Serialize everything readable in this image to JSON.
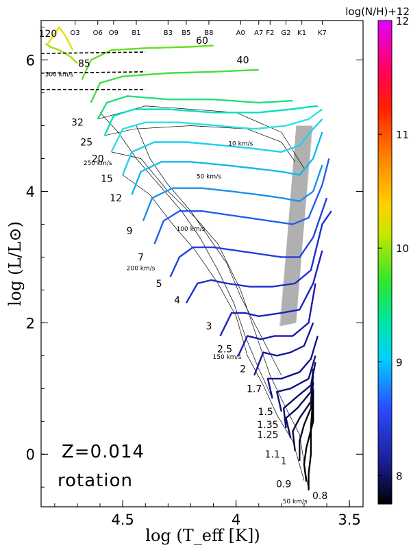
{
  "chart_data": {
    "type": "line",
    "title": "",
    "xlabel": "log (T_eff [K])",
    "ylabel": "log (L/L⊙)",
    "xlim": [
      4.86,
      3.44
    ],
    "ylim": [
      -0.8,
      6.6
    ],
    "x_ticks": [
      4.5,
      4.0,
      3.5
    ],
    "x_tick_labels": [
      "4.5",
      "4",
      "3.5"
    ],
    "y_ticks": [
      0,
      2,
      4,
      6
    ],
    "y_tick_labels": [
      "0",
      "2",
      "4",
      "6"
    ],
    "spectral_types": [
      {
        "label": "O3",
        "x": 4.71
      },
      {
        "label": "O6",
        "x": 4.61
      },
      {
        "label": "O9",
        "x": 4.54
      },
      {
        "label": "B1",
        "x": 4.44
      },
      {
        "label": "B3",
        "x": 4.3
      },
      {
        "label": "B5",
        "x": 4.22
      },
      {
        "label": "B8",
        "x": 4.12
      },
      {
        "label": "A0",
        "x": 3.98
      },
      {
        "label": "A7",
        "x": 3.9
      },
      {
        "label": "F2",
        "x": 3.85
      },
      {
        "label": "G2",
        "x": 3.78
      },
      {
        "label": "K1",
        "x": 3.71
      },
      {
        "label": "K7",
        "x": 3.62
      }
    ],
    "annotations": [
      "Z=0.014",
      "rotation"
    ],
    "colorbar": {
      "label": "log(N/H)+12",
      "range": [
        7.75,
        12.0
      ],
      "ticks": [
        "8",
        "9",
        "10",
        "11",
        "12"
      ]
    },
    "tracks": [
      {
        "mass": "0.8",
        "label_at": [
          3.63,
          -0.63
        ],
        "zams": [
          3.68,
          -0.55
        ],
        "points": [
          [
            3.68,
            -0.55
          ],
          [
            3.68,
            -0.3
          ],
          [
            3.67,
            0.0
          ],
          [
            3.67,
            0.4
          ],
          [
            3.66,
            0.9
          ]
        ]
      },
      {
        "mass": "0.9",
        "label_at": [
          3.79,
          -0.45
        ],
        "zams": [
          3.69,
          -0.42
        ],
        "points": [
          [
            3.69,
            -0.42
          ],
          [
            3.7,
            -0.15
          ],
          [
            3.69,
            0.1
          ],
          [
            3.66,
            0.5
          ],
          [
            3.66,
            1.0
          ]
        ]
      },
      {
        "mass": "1",
        "label_at": [
          3.79,
          -0.1
        ],
        "zams": [
          3.72,
          -0.1
        ],
        "points": [
          [
            3.72,
            -0.1
          ],
          [
            3.72,
            0.2
          ],
          [
            3.7,
            0.45
          ],
          [
            3.67,
            0.7
          ],
          [
            3.66,
            1.1
          ]
        ]
      },
      {
        "mass": "1.1",
        "label_at": [
          3.84,
          0.0
        ],
        "zams": [
          3.74,
          0.05
        ],
        "points": [
          [
            3.74,
            0.05
          ],
          [
            3.75,
            0.35
          ],
          [
            3.72,
            0.55
          ],
          [
            3.67,
            0.8
          ],
          [
            3.66,
            1.2
          ]
        ]
      },
      {
        "mass": "1.25",
        "label_at": [
          3.86,
          0.3
        ],
        "zams": [
          3.76,
          0.25
        ],
        "points": [
          [
            3.76,
            0.25
          ],
          [
            3.78,
            0.55
          ],
          [
            3.73,
            0.7
          ],
          [
            3.67,
            0.95
          ],
          [
            3.66,
            1.3
          ]
        ]
      },
      {
        "mass": "1.35",
        "label_at": [
          3.86,
          0.45
        ],
        "zams": [
          3.78,
          0.4
        ],
        "points": [
          [
            3.78,
            0.4
          ],
          [
            3.79,
            0.7
          ],
          [
            3.74,
            0.85
          ],
          [
            3.67,
            1.05
          ],
          [
            3.65,
            1.4
          ]
        ]
      },
      {
        "mass": "1.5",
        "label_at": [
          3.87,
          0.65
        ],
        "zams": [
          3.8,
          0.65
        ],
        "points": [
          [
            3.8,
            0.65
          ],
          [
            3.82,
            0.95
          ],
          [
            3.76,
            1.0
          ],
          [
            3.68,
            1.15
          ],
          [
            3.65,
            1.5
          ]
        ]
      },
      {
        "mass": "1.7",
        "label_at": [
          3.92,
          1.0
        ],
        "zams": [
          3.84,
          0.85
        ],
        "points": [
          [
            3.84,
            0.85
          ],
          [
            3.86,
            1.15
          ],
          [
            3.8,
            1.15
          ],
          [
            3.72,
            1.25
          ],
          [
            3.67,
            1.45
          ],
          [
            3.64,
            1.8
          ]
        ]
      },
      {
        "mass": "2",
        "label_at": [
          3.97,
          1.3
        ],
        "zams": [
          3.92,
          1.2
        ],
        "points": [
          [
            3.92,
            1.2
          ],
          [
            3.88,
            1.55
          ],
          [
            3.82,
            1.5
          ],
          [
            3.76,
            1.55
          ],
          [
            3.7,
            1.65
          ],
          [
            3.66,
            2.0
          ]
        ]
      },
      {
        "mass": "2.5",
        "label_at": [
          4.05,
          1.6
        ],
        "zams": [
          3.99,
          1.5
        ],
        "points": [
          [
            3.99,
            1.5
          ],
          [
            3.95,
            1.8
          ],
          [
            3.89,
            1.75
          ],
          [
            3.83,
            1.8
          ],
          [
            3.75,
            1.8
          ],
          [
            3.68,
            2.0
          ],
          [
            3.65,
            2.6
          ]
        ]
      },
      {
        "mass": "3",
        "label_at": [
          4.12,
          1.95
        ],
        "zams": [
          4.07,
          1.8
        ],
        "points": [
          [
            4.07,
            1.8
          ],
          [
            4.02,
            2.15
          ],
          [
            3.96,
            2.15
          ],
          [
            3.9,
            2.1
          ],
          [
            3.8,
            2.15
          ],
          [
            3.72,
            2.2
          ],
          [
            3.66,
            2.6
          ],
          [
            3.62,
            3.1
          ]
        ]
      },
      {
        "mass": "4",
        "label_at": [
          4.26,
          2.35
        ],
        "zams": [
          4.22,
          2.3
        ],
        "points": [
          [
            4.22,
            2.3
          ],
          [
            4.17,
            2.6
          ],
          [
            4.11,
            2.65
          ],
          [
            4.04,
            2.6
          ],
          [
            3.94,
            2.55
          ],
          [
            3.84,
            2.55
          ],
          [
            3.74,
            2.6
          ],
          [
            3.67,
            2.8
          ],
          [
            3.62,
            3.5
          ],
          [
            3.58,
            3.7
          ]
        ]
      },
      {
        "mass": "5",
        "label_at": [
          4.34,
          2.6
        ],
        "zams": [
          4.29,
          2.7
        ],
        "points": [
          [
            4.29,
            2.7
          ],
          [
            4.25,
            3.0
          ],
          [
            4.19,
            3.15
          ],
          [
            4.1,
            3.15
          ],
          [
            4.0,
            3.1
          ],
          [
            3.9,
            3.05
          ],
          [
            3.8,
            3.0
          ],
          [
            3.72,
            3.0
          ],
          [
            3.66,
            3.3
          ],
          [
            3.6,
            3.9
          ]
        ]
      },
      {
        "mass": "7",
        "label_at": [
          4.42,
          3.0
        ],
        "zams": [
          4.36,
          3.2
        ],
        "points": [
          [
            4.36,
            3.2
          ],
          [
            4.32,
            3.55
          ],
          [
            4.25,
            3.7
          ],
          [
            4.15,
            3.7
          ],
          [
            4.05,
            3.65
          ],
          [
            3.95,
            3.6
          ],
          [
            3.85,
            3.55
          ],
          [
            3.75,
            3.5
          ],
          [
            3.68,
            3.6
          ],
          [
            3.62,
            4.1
          ],
          [
            3.59,
            4.5
          ]
        ]
      },
      {
        "mass": "9",
        "label_at": [
          4.47,
          3.4
        ],
        "zams": [
          4.41,
          3.55
        ],
        "points": [
          [
            4.41,
            3.55
          ],
          [
            4.37,
            3.9
          ],
          [
            4.28,
            4.05
          ],
          [
            4.15,
            4.05
          ],
          [
            4.02,
            4.0
          ],
          [
            3.9,
            3.95
          ],
          [
            3.8,
            3.9
          ],
          [
            3.72,
            3.85
          ],
          [
            3.66,
            4.0
          ],
          [
            3.62,
            4.4
          ]
        ]
      },
      {
        "mass": "12",
        "label_at": [
          4.53,
          3.9
        ],
        "zams": [
          4.46,
          3.95
        ],
        "points": [
          [
            4.46,
            3.95
          ],
          [
            4.42,
            4.3
          ],
          [
            4.33,
            4.45
          ],
          [
            4.2,
            4.45
          ],
          [
            4.05,
            4.4
          ],
          [
            3.92,
            4.35
          ],
          [
            3.8,
            4.3
          ],
          [
            3.72,
            4.25
          ],
          [
            3.66,
            4.5
          ],
          [
            3.62,
            4.9
          ]
        ]
      },
      {
        "mass": "15",
        "label_at": [
          4.57,
          4.2
        ],
        "zams": [
          4.5,
          4.25
        ],
        "points": [
          [
            4.5,
            4.25
          ],
          [
            4.46,
            4.6
          ],
          [
            4.36,
            4.75
          ],
          [
            4.22,
            4.75
          ],
          [
            4.06,
            4.7
          ],
          [
            3.92,
            4.65
          ],
          [
            3.8,
            4.6
          ],
          [
            3.72,
            4.7
          ],
          [
            3.66,
            4.95
          ],
          [
            3.62,
            5.1
          ]
        ]
      },
      {
        "mass": "20",
        "label_at": [
          4.61,
          4.5
        ],
        "zams": [
          4.55,
          4.6
        ],
        "points": [
          [
            4.55,
            4.6
          ],
          [
            4.5,
            4.95
          ],
          [
            4.4,
            5.05
          ],
          [
            4.25,
            5.05
          ],
          [
            4.08,
            5.0
          ],
          [
            3.92,
            4.95
          ],
          [
            3.78,
            5.0
          ],
          [
            3.68,
            5.1
          ],
          [
            3.62,
            5.25
          ]
        ]
      },
      {
        "mass": "25",
        "label_at": [
          4.66,
          4.75
        ],
        "zams": [
          4.58,
          4.85
        ],
        "points": [
          [
            4.58,
            4.85
          ],
          [
            4.54,
            5.15
          ],
          [
            4.45,
            5.25
          ],
          [
            4.3,
            5.25
          ],
          [
            4.1,
            5.2
          ],
          [
            3.9,
            5.2
          ],
          [
            3.76,
            5.25
          ],
          [
            3.64,
            5.3
          ]
        ]
      },
      {
        "mass": "32",
        "label_at": [
          4.7,
          5.05
        ],
        "zams": [
          4.61,
          5.1
        ],
        "points": [
          [
            4.61,
            5.1
          ],
          [
            4.57,
            5.35
          ],
          [
            4.48,
            5.45
          ],
          [
            4.3,
            5.4
          ],
          [
            4.1,
            5.4
          ],
          [
            3.9,
            5.35
          ],
          [
            3.75,
            5.38
          ]
        ]
      },
      {
        "mass": "40",
        "label_at": [
          3.97,
          6.0
        ],
        "zams": [
          4.64,
          5.35
        ],
        "points": [
          [
            4.64,
            5.35
          ],
          [
            4.6,
            5.65
          ],
          [
            4.5,
            5.75
          ],
          [
            4.3,
            5.8
          ],
          [
            4.1,
            5.82
          ],
          [
            3.9,
            5.85
          ]
        ]
      },
      {
        "mass": "60",
        "label_at": [
          4.15,
          6.3
        ],
        "zams": [
          4.68,
          5.7
        ],
        "points": [
          [
            4.68,
            5.7
          ],
          [
            4.64,
            6.0
          ],
          [
            4.55,
            6.15
          ],
          [
            4.4,
            6.18
          ],
          [
            4.2,
            6.2
          ],
          [
            4.1,
            6.22
          ]
        ]
      },
      {
        "mass": "85",
        "label_at": [
          4.67,
          5.95
        ],
        "zams": [
          4.7,
          5.95
        ],
        "points": [
          [
            4.7,
            5.95
          ],
          [
            4.73,
            6.05
          ],
          [
            4.78,
            6.15
          ],
          [
            4.82,
            6.2
          ],
          [
            4.84,
            6.25
          ]
        ]
      },
      {
        "mass": "120",
        "label_at": [
          4.83,
          6.4
        ],
        "zams": [
          4.72,
          6.15
        ],
        "points": [
          [
            4.72,
            6.15
          ],
          [
            4.75,
            6.35
          ],
          [
            4.78,
            6.5
          ],
          [
            4.8,
            6.4
          ],
          [
            4.83,
            6.25
          ]
        ]
      }
    ],
    "velocity_labels": [
      {
        "text": "300 km/s",
        "x": 4.78,
        "y": 5.75
      },
      {
        "text": "250 km/s",
        "x": 4.61,
        "y": 4.4
      },
      {
        "text": "10 km/s",
        "x": 3.98,
        "y": 4.7
      },
      {
        "text": "50 km/s",
        "x": 4.12,
        "y": 4.2
      },
      {
        "text": "100 km/s",
        "x": 4.2,
        "y": 3.4
      },
      {
        "text": "200 km/s",
        "x": 4.42,
        "y": 2.8
      },
      {
        "text": "150 km/s",
        "x": 4.04,
        "y": 1.45
      },
      {
        "text": "50 km/s",
        "x": 3.74,
        "y": -0.75
      }
    ],
    "isochrone_lines": [
      [
        [
          4.58,
          4.85
        ],
        [
          4.45,
          4.95
        ],
        [
          4.2,
          5.0
        ],
        [
          3.95,
          4.95
        ],
        [
          3.8,
          4.75
        ],
        [
          3.74,
          4.45
        ]
      ],
      [
        [
          4.61,
          5.1
        ],
        [
          4.4,
          5.3
        ],
        [
          4.0,
          5.2
        ],
        [
          3.8,
          4.9
        ],
        [
          3.7,
          4.35
        ]
      ],
      [
        [
          4.55,
          4.6
        ],
        [
          4.42,
          4.5
        ],
        [
          4.3,
          4.0
        ],
        [
          4.18,
          3.6
        ],
        [
          4.08,
          3.2
        ],
        [
          3.98,
          2.5
        ],
        [
          3.92,
          1.9
        ],
        [
          3.85,
          1.2
        ],
        [
          3.78,
          0.7
        ],
        [
          3.72,
          0.3
        ],
        [
          3.68,
          -0.55
        ]
      ],
      [
        [
          4.5,
          4.25
        ],
        [
          4.38,
          3.95
        ],
        [
          4.28,
          3.5
        ],
        [
          4.18,
          3.1
        ],
        [
          4.08,
          2.6
        ],
        [
          4.0,
          2.1
        ],
        [
          3.95,
          1.5
        ],
        [
          3.88,
          1.05
        ],
        [
          3.82,
          0.6
        ],
        [
          3.75,
          0.2
        ],
        [
          3.7,
          -0.4
        ]
      ],
      [
        [
          4.6,
          5.2
        ],
        [
          4.52,
          4.9
        ],
        [
          4.44,
          4.5
        ],
        [
          4.34,
          4.1
        ],
        [
          4.24,
          3.7
        ],
        [
          4.16,
          3.3
        ],
        [
          4.08,
          2.8
        ],
        [
          4.01,
          2.3
        ],
        [
          3.96,
          1.8
        ],
        [
          3.9,
          1.3
        ],
        [
          3.84,
          0.85
        ]
      ],
      [
        [
          4.44,
          5.0
        ],
        [
          4.38,
          4.5
        ],
        [
          4.3,
          4.1
        ],
        [
          4.2,
          3.7
        ],
        [
          4.12,
          3.3
        ],
        [
          4.04,
          2.9
        ],
        [
          3.98,
          2.4
        ],
        [
          3.92,
          2.0
        ],
        [
          3.86,
          1.6
        ],
        [
          3.8,
          1.2
        ]
      ]
    ],
    "gray_band": [
      [
        3.81,
        1.95
      ],
      [
        3.74,
        2.0
      ],
      [
        3.66,
        5.0
      ],
      [
        3.73,
        5.0
      ]
    ]
  }
}
